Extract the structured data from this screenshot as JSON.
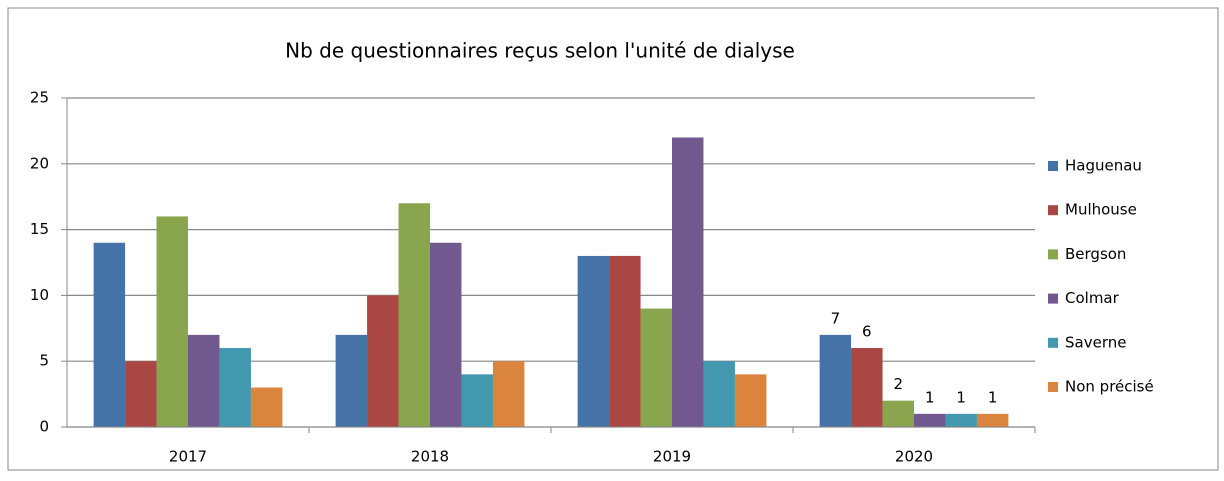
{
  "chart_data": {
    "type": "bar",
    "title": "Nb de questionnaires reçus selon l'unité de dialyse",
    "categories": [
      "2017",
      "2018",
      "2019",
      "2020"
    ],
    "series": [
      {
        "name": "Haguenau",
        "color": "#4572a7",
        "values": [
          14,
          7,
          13,
          7
        ]
      },
      {
        "name": "Mulhouse",
        "color": "#aa4643",
        "values": [
          5,
          10,
          13,
          6
        ]
      },
      {
        "name": "Bergson",
        "color": "#89a54e",
        "values": [
          16,
          17,
          9,
          2
        ]
      },
      {
        "name": "Colmar",
        "color": "#71588f",
        "values": [
          7,
          14,
          22,
          1
        ]
      },
      {
        "name": "Saverne",
        "color": "#4198af",
        "values": [
          6,
          4,
          5,
          1
        ]
      },
      {
        "name": "Non précisé",
        "color": "#db843d",
        "values": [
          3,
          5,
          4,
          1
        ]
      }
    ],
    "data_labels": [
      false,
      false,
      false,
      true
    ],
    "ylim": [
      0,
      25
    ],
    "yticks": [
      0,
      5,
      10,
      15,
      20,
      25
    ],
    "grid": true,
    "legend": "right"
  }
}
